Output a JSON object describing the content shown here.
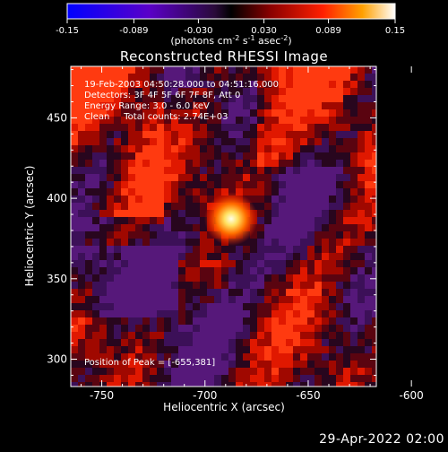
{
  "chart_data": {
    "type": "heatmap",
    "title": "Reconstructed RHESSI Image",
    "xlabel": "Heliocentric X (arcsec)",
    "ylabel": "Heliocentric Y (arcsec)",
    "xlim": [
      -765,
      -617
    ],
    "ylim": [
      283,
      482
    ],
    "xticks": [
      -750,
      -700,
      -650,
      -600
    ],
    "yticks": [
      300,
      350,
      400,
      450
    ],
    "colorbar": {
      "min": -0.15,
      "max": 0.15,
      "ticks": [
        "-0.15",
        "-0.089",
        "-0.030",
        "0.030",
        "0.089",
        "0.15"
      ],
      "label_prefix": "(photons cm",
      "label_exp1": "-2",
      "label_mid": " s",
      "label_exp2": "-1",
      "label_mid2": " asec",
      "label_exp3": "-2",
      "label_suffix": ")"
    },
    "info_lines": [
      "19-Feb-2003 04:50:28.000 to 04:51:16.000",
      "Detectors: 3F 4F 5F 6F 7F 8F, Att 0",
      "Energy Range: 3.0 - 6.0 keV",
      "Clean     Total counts: 2.74E+03"
    ],
    "peak_label": "Position of Peak = [-655,381]",
    "peak": [
      -655,
      381
    ],
    "footer": "29-Apr-2022 02:00"
  }
}
